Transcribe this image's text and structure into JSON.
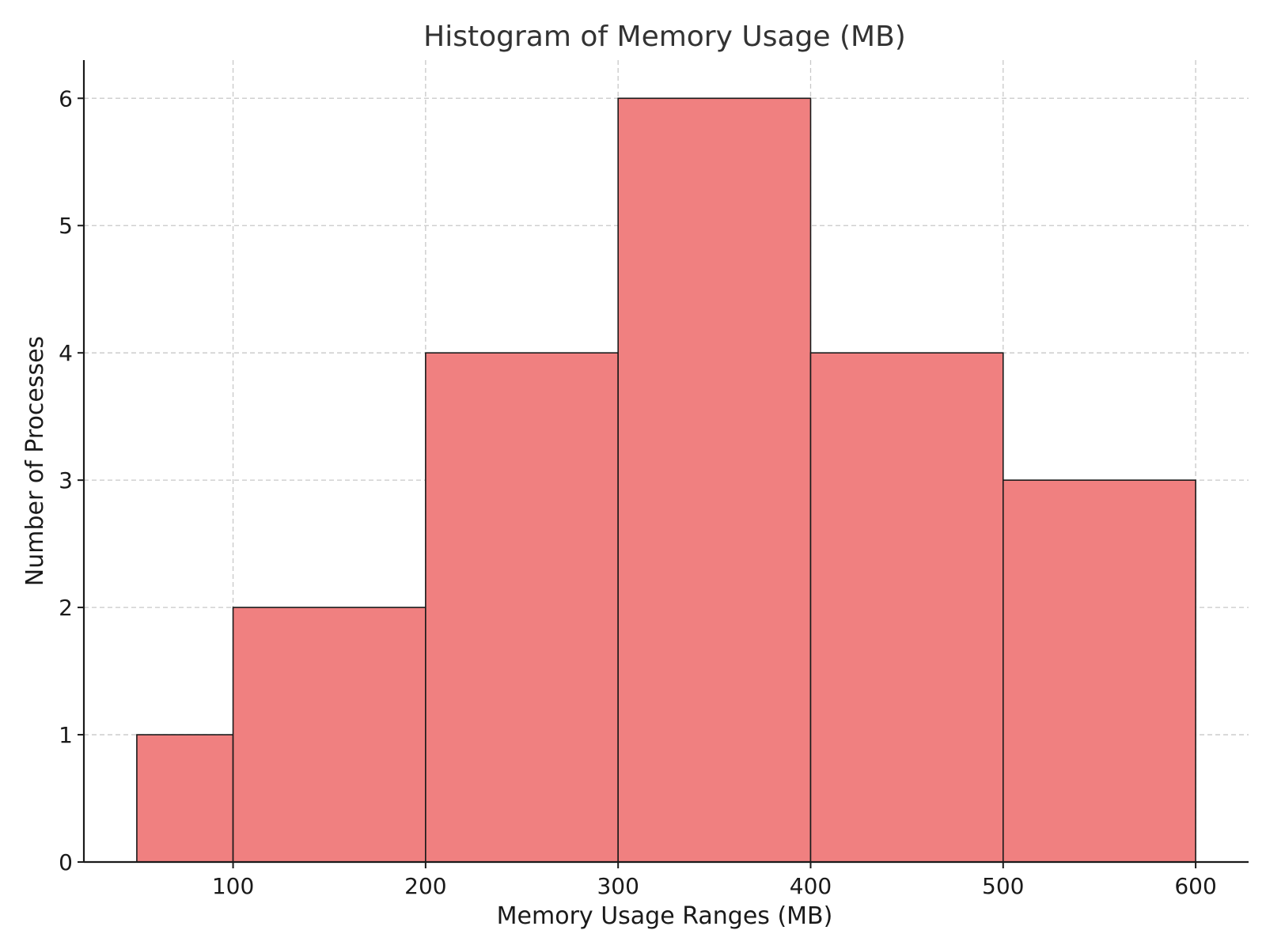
{
  "chart_data": {
    "type": "bar",
    "title": "Histogram of Memory Usage (MB)",
    "xlabel": "Memory Usage Ranges (MB)",
    "ylabel": "Number of Processes",
    "bins": [
      {
        "start": 50,
        "end": 100,
        "count": 1
      },
      {
        "start": 100,
        "end": 200,
        "count": 2
      },
      {
        "start": 200,
        "end": 300,
        "count": 4
      },
      {
        "start": 300,
        "end": 400,
        "count": 6
      },
      {
        "start": 400,
        "end": 500,
        "count": 4
      },
      {
        "start": 500,
        "end": 600,
        "count": 3
      }
    ],
    "xlim": [
      22.5,
      627.5
    ],
    "ylim": [
      0,
      6.3
    ],
    "xticks": [
      100,
      200,
      300,
      400,
      500,
      600
    ],
    "yticks": [
      0,
      1,
      2,
      3,
      4,
      5,
      6
    ],
    "grid": true,
    "bar_color": "#f08080",
    "edge_color": "#1a1a1a"
  }
}
